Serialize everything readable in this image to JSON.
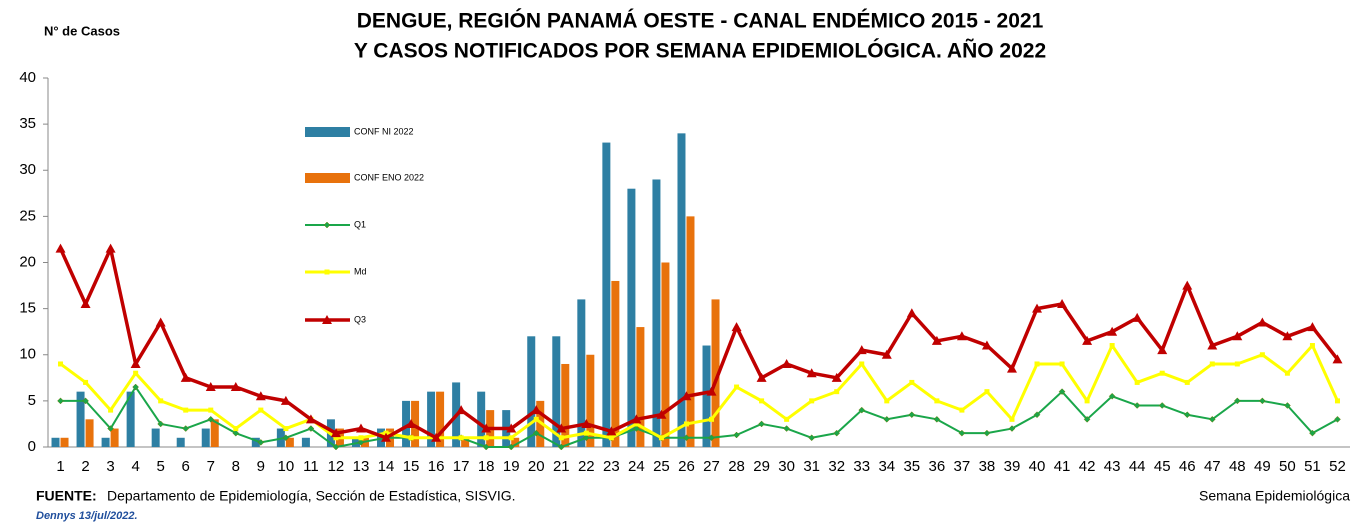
{
  "chart_data": {
    "type": "bar_line",
    "title": "DENGUE, REGIÓN PANAMÁ OESTE - CANAL ENDÉMICO 2015 - 2021",
    "subtitle": "Y CASOS NOTIFICADOS POR SEMANA EPIDEMIOLÓGICA. AÑO 2022",
    "y_label": "N° de Casos",
    "x_label": "Semana Epidemiológica",
    "source_label": "FUENTE:",
    "source": "Departamento de Epidemiología, Sección de Estadística, SISVIG.",
    "note": "Dennys  13/jul/2022.",
    "categories": [
      "1",
      "2",
      "3",
      "4",
      "5",
      "6",
      "7",
      "8",
      "9",
      "10",
      "11",
      "12",
      "13",
      "14",
      "15",
      "16",
      "17",
      "18",
      "19",
      "20",
      "21",
      "22",
      "23",
      "24",
      "25",
      "26",
      "27",
      "28",
      "29",
      "30",
      "31",
      "32",
      "33",
      "34",
      "35",
      "36",
      "37",
      "38",
      "39",
      "40",
      "41",
      "42",
      "43",
      "44",
      "45",
      "46",
      "47",
      "48",
      "49",
      "50",
      "51",
      "52"
    ],
    "ylim": [
      0,
      40
    ],
    "yticks": [
      0,
      5,
      10,
      15,
      20,
      25,
      30,
      35,
      40
    ],
    "grid": false,
    "series": [
      {
        "name": "CONF NI 2022",
        "kind": "bar",
        "color": "#2e7fa3",
        "values": [
          1,
          6,
          1,
          6,
          2,
          1,
          2,
          0,
          1,
          2,
          1,
          3,
          1,
          2,
          5,
          6,
          7,
          6,
          4,
          12,
          12,
          16,
          33,
          28,
          29,
          34,
          11,
          null,
          null,
          null,
          null,
          null,
          null,
          null,
          null,
          null,
          null,
          null,
          null,
          null,
          null,
          null,
          null,
          null,
          null,
          null,
          null,
          null,
          null,
          null,
          null,
          null
        ]
      },
      {
        "name": "CONF ENO 2022",
        "kind": "bar",
        "color": "#e8720c",
        "values": [
          1,
          3,
          2,
          0,
          0,
          0,
          3,
          0,
          0,
          1,
          0,
          2,
          1,
          2,
          5,
          6,
          1,
          4,
          1,
          5,
          9,
          10,
          18,
          13,
          20,
          25,
          16,
          null,
          null,
          null,
          null,
          null,
          null,
          null,
          null,
          null,
          null,
          null,
          null,
          null,
          null,
          null,
          null,
          null,
          null,
          null,
          null,
          null,
          null,
          null,
          null,
          null
        ]
      },
      {
        "name": "Q1",
        "kind": "line",
        "marker": "diamond",
        "color": "#1aa64a",
        "values": [
          5,
          5,
          2,
          6.5,
          2.5,
          2,
          3,
          1.5,
          0.5,
          1,
          2,
          0,
          0.5,
          1,
          1,
          1,
          1,
          0,
          0,
          1.5,
          0,
          1,
          1,
          2,
          1,
          1,
          1,
          1.3,
          2.5,
          2,
          1,
          1.5,
          4,
          3,
          3.5,
          3,
          1.5,
          1.5,
          2,
          3.5,
          6,
          3,
          5.5,
          4.5,
          4.5,
          3.5,
          3,
          5,
          5,
          4.5,
          1.5,
          3
        ]
      },
      {
        "name": "Md",
        "kind": "line",
        "marker": "square",
        "color": "#ffff00",
        "values": [
          9,
          7,
          4,
          8,
          5,
          4,
          4,
          2,
          4,
          2,
          3,
          1,
          1,
          1.5,
          1,
          1,
          1,
          1,
          1,
          3,
          1,
          1.5,
          1,
          2.5,
          1,
          2.5,
          3,
          6.5,
          5,
          3,
          5,
          6,
          9,
          5,
          7,
          5,
          4,
          6,
          3,
          9,
          9,
          5,
          11,
          7,
          8,
          7,
          9,
          9,
          10,
          8,
          11,
          5
        ]
      },
      {
        "name": "Q3",
        "kind": "line",
        "marker": "triangle",
        "color": "#c00000",
        "values": [
          21.5,
          15.5,
          21.5,
          9,
          13.5,
          7.5,
          6.5,
          6.5,
          5.5,
          5,
          3,
          1.5,
          2,
          1,
          2.5,
          1,
          4,
          2,
          2,
          4,
          2,
          2.5,
          1.7,
          3,
          3.5,
          5.5,
          6,
          13,
          7.5,
          9,
          8,
          7.5,
          10.5,
          10,
          14.5,
          11.5,
          12,
          11,
          8.5,
          15,
          15.5,
          11.5,
          12.5,
          14,
          10.5,
          17.5,
          11,
          12,
          13.5,
          12,
          13,
          9.5
        ]
      }
    ]
  }
}
